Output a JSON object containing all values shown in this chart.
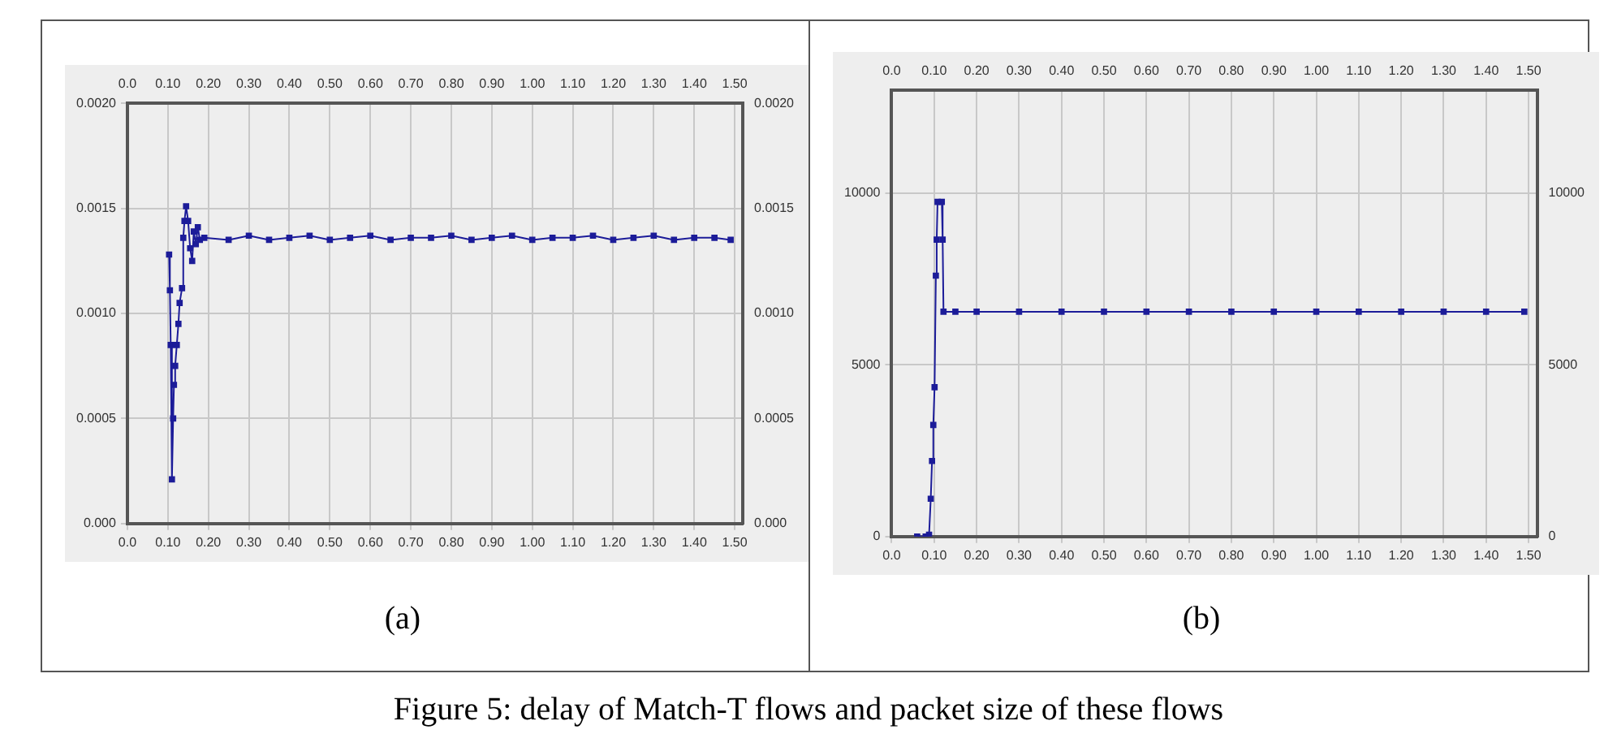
{
  "chart_data": [
    {
      "type": "line",
      "color": "#1c1c99",
      "marker": "square",
      "grid": true,
      "annotations": [
        "(a)"
      ],
      "x": [
        0.103,
        0.105,
        0.107,
        0.11,
        0.113,
        0.115,
        0.118,
        0.122,
        0.126,
        0.129,
        0.135,
        0.138,
        0.141,
        0.145,
        0.15,
        0.155,
        0.16,
        0.164,
        0.169,
        0.174,
        0.179,
        0.19,
        0.25,
        0.3,
        0.35,
        0.4,
        0.45,
        0.5,
        0.55,
        0.6,
        0.65,
        0.7,
        0.75,
        0.8,
        0.85,
        0.9,
        0.95,
        1.0,
        1.05,
        1.1,
        1.15,
        1.2,
        1.25,
        1.3,
        1.35,
        1.4,
        1.45,
        1.49
      ],
      "values": [
        0.00128,
        0.00111,
        0.00085,
        0.00021,
        0.0005,
        0.00066,
        0.00075,
        0.00085,
        0.00095,
        0.00105,
        0.00112,
        0.00136,
        0.00144,
        0.00151,
        0.00144,
        0.00131,
        0.00125,
        0.00139,
        0.00133,
        0.00141,
        0.00135,
        0.00136,
        0.00135,
        0.00137,
        0.00135,
        0.00136,
        0.00137,
        0.00135,
        0.00136,
        0.00137,
        0.00135,
        0.00136,
        0.00136,
        0.00137,
        0.00135,
        0.00136,
        0.00137,
        0.00135,
        0.00136,
        0.00136,
        0.00137,
        0.00135,
        0.00136,
        0.00137,
        0.00135,
        0.00136,
        0.00136,
        0.00135
      ],
      "xlim": [
        0,
        1.52
      ],
      "xticks": [
        {
          "value": 0,
          "label": "0.0"
        },
        {
          "value": 0.1,
          "label": "0.10"
        },
        {
          "value": 0.2,
          "label": "0.20"
        },
        {
          "value": 0.3,
          "label": "0.30"
        },
        {
          "value": 0.4,
          "label": "0.40"
        },
        {
          "value": 0.5,
          "label": "0.50"
        },
        {
          "value": 0.6,
          "label": "0.60"
        },
        {
          "value": 0.7,
          "label": "0.70"
        },
        {
          "value": 0.8,
          "label": "0.80"
        },
        {
          "value": 0.9,
          "label": "0.90"
        },
        {
          "value": 1,
          "label": "1.00"
        },
        {
          "value": 1.1,
          "label": "1.10"
        },
        {
          "value": 1.2,
          "label": "1.20"
        },
        {
          "value": 1.3,
          "label": "1.30"
        },
        {
          "value": 1.4,
          "label": "1.40"
        },
        {
          "value": 1.5,
          "label": "1.50"
        }
      ],
      "x2lim": [
        0,
        1.52
      ],
      "x2ticks": [
        {
          "value": 0,
          "label": "0.0"
        },
        {
          "value": 0.1,
          "label": "0.10"
        },
        {
          "value": 0.2,
          "label": "0.20"
        },
        {
          "value": 0.3,
          "label": "0.30"
        },
        {
          "value": 0.4,
          "label": "0.40"
        },
        {
          "value": 0.5,
          "label": "0.50"
        },
        {
          "value": 0.6,
          "label": "0.60"
        },
        {
          "value": 0.7,
          "label": "0.70"
        },
        {
          "value": 0.8,
          "label": "0.80"
        },
        {
          "value": 0.9,
          "label": "0.90"
        },
        {
          "value": 1,
          "label": "1.00"
        },
        {
          "value": 1.1,
          "label": "1.10"
        },
        {
          "value": 1.2,
          "label": "1.20"
        },
        {
          "value": 1.3,
          "label": "1.30"
        },
        {
          "value": 1.4,
          "label": "1.40"
        },
        {
          "value": 1.5,
          "label": "1.50"
        }
      ],
      "ylim": [
        0,
        0.002
      ],
      "yticks": [
        {
          "value": 0,
          "label": "0.000"
        },
        0.0005,
        {
          "value": 0.001,
          "label": "0.0010"
        },
        0.0015,
        {
          "value": 0.002,
          "label": "0.0020"
        }
      ],
      "y2lim": [
        0,
        0.002
      ],
      "y2ticks": [
        {
          "value": 0,
          "label": "0.000"
        },
        0.0005,
        {
          "value": 0.001,
          "label": "0.0010"
        },
        0.0015,
        {
          "value": 0.002,
          "label": "0.0020"
        }
      ]
    },
    {
      "type": "line",
      "color": "#1c1c99",
      "marker": "square",
      "grid": true,
      "annotations": [
        "(b)",
        "Figure 5: delay of Match-T flows and packet size of these flows"
      ],
      "x": [
        0.06,
        0.08,
        0.088,
        0.092,
        0.095,
        0.098,
        0.101,
        0.104,
        0.106,
        0.108,
        0.118,
        0.12,
        0.122,
        0.15,
        0.2,
        0.3,
        0.4,
        0.5,
        0.6,
        0.7,
        0.8,
        0.9,
        1.0,
        1.1,
        1.2,
        1.3,
        1.4,
        1.49
      ],
      "values": [
        0,
        0,
        50,
        1100,
        2200,
        3250,
        4350,
        7600,
        8650,
        9750,
        9750,
        8650,
        6550,
        6550,
        6550,
        6550,
        6550,
        6550,
        6550,
        6550,
        6550,
        6550,
        6550,
        6550,
        6550,
        6550,
        6550,
        6550
      ],
      "xlim": [
        0,
        1.52
      ],
      "xticks": [
        {
          "value": 0,
          "label": "0.0"
        },
        {
          "value": 0.1,
          "label": "0.10"
        },
        {
          "value": 0.2,
          "label": "0.20"
        },
        {
          "value": 0.3,
          "label": "0.30"
        },
        {
          "value": 0.4,
          "label": "0.40"
        },
        {
          "value": 0.5,
          "label": "0.50"
        },
        {
          "value": 0.6,
          "label": "0.60"
        },
        {
          "value": 0.7,
          "label": "0.70"
        },
        {
          "value": 0.8,
          "label": "0.80"
        },
        {
          "value": 0.9,
          "label": "0.90"
        },
        {
          "value": 1,
          "label": "1.00"
        },
        {
          "value": 1.1,
          "label": "1.10"
        },
        {
          "value": 1.2,
          "label": "1.20"
        },
        {
          "value": 1.3,
          "label": "1.30"
        },
        {
          "value": 1.4,
          "label": "1.40"
        },
        {
          "value": 1.5,
          "label": "1.50"
        }
      ],
      "x2lim": [
        0,
        1.52
      ],
      "x2ticks": [
        {
          "value": 0,
          "label": "0.0"
        },
        {
          "value": 0.1,
          "label": "0.10"
        },
        {
          "value": 0.2,
          "label": "0.20"
        },
        {
          "value": 0.3,
          "label": "0.30"
        },
        {
          "value": 0.4,
          "label": "0.40"
        },
        {
          "value": 0.5,
          "label": "0.50"
        },
        {
          "value": 0.6,
          "label": "0.60"
        },
        {
          "value": 0.7,
          "label": "0.70"
        },
        {
          "value": 0.8,
          "label": "0.80"
        },
        {
          "value": 0.9,
          "label": "0.90"
        },
        {
          "value": 1,
          "label": "1.00"
        },
        {
          "value": 1.1,
          "label": "1.10"
        },
        {
          "value": 1.2,
          "label": "1.20"
        },
        {
          "value": 1.3,
          "label": "1.30"
        },
        {
          "value": 1.4,
          "label": "1.40"
        },
        {
          "value": 1.5,
          "label": "1.50"
        }
      ],
      "ylim": [
        0,
        13000
      ],
      "yticks": [
        0,
        5000,
        10000
      ],
      "y2lim": [
        0,
        13000
      ],
      "y2ticks": [
        0,
        5000,
        10000
      ]
    }
  ]
}
